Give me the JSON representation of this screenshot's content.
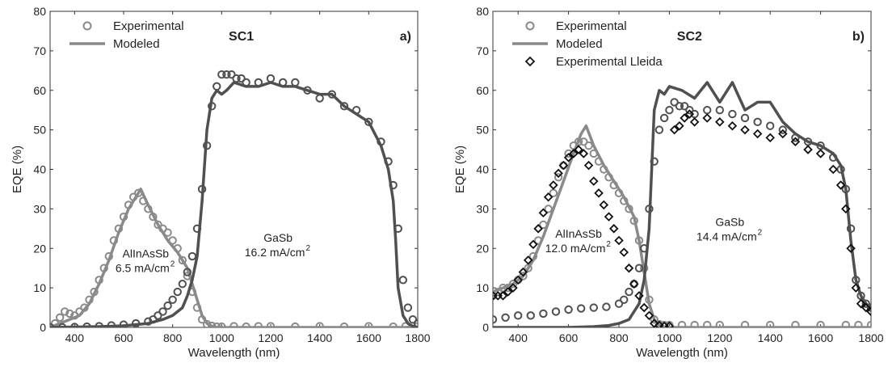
{
  "chart_data": [
    {
      "type": "line",
      "panel_label": "a)",
      "title": "SC1",
      "xlabel": "Wavelength (nm)",
      "ylabel": "EQE (%)",
      "xlim": [
        300,
        1800
      ],
      "ylim": [
        0,
        80
      ],
      "xticks": [
        400,
        600,
        800,
        1000,
        1200,
        1400,
        1600,
        1800
      ],
      "yticks": [
        0,
        10,
        20,
        30,
        40,
        50,
        60,
        70,
        80
      ],
      "legend": [
        "Experimental",
        "Modeled"
      ],
      "legend_position": "top-left",
      "annotations": [
        {
          "lines": [
            "AlInAsSb",
            "6.5 mA/cm",
            "2"
          ],
          "x": 690,
          "y": 14
        },
        {
          "lines": [
            "GaSb",
            "16.2 mA/cm",
            "2"
          ],
          "x": 1230,
          "y": 18
        }
      ],
      "series": [
        {
          "name": "Experimental",
          "group": "AlInAsSb",
          "style": "circle",
          "color": "#8a8a8a",
          "x": [
            300,
            320,
            340,
            360,
            380,
            400,
            420,
            440,
            460,
            480,
            500,
            520,
            540,
            560,
            580,
            600,
            620,
            640,
            660,
            680,
            700,
            720,
            740,
            760,
            780,
            800,
            820,
            840,
            860,
            880,
            900,
            920,
            940,
            960,
            980,
            1000,
            1050,
            1100,
            1150,
            1200,
            1300,
            1400,
            1500,
            1600,
            1700,
            1750,
            1800
          ],
          "y": [
            0,
            1,
            2.5,
            4,
            3.5,
            3,
            4,
            5,
            7,
            9,
            12,
            15,
            18,
            22,
            25,
            28,
            31,
            33,
            34,
            32,
            30,
            28,
            26,
            25,
            24,
            22,
            20,
            17,
            13,
            9,
            5,
            2,
            0.8,
            0.4,
            0.2,
            0.2,
            0.3,
            0.2,
            0.3,
            0.3,
            0.2,
            0.3,
            0.2,
            0.3,
            0.2,
            0.3,
            0.3
          ]
        },
        {
          "name": "Modeled",
          "group": "AlInAsSb",
          "style": "line",
          "color": "#8a8a8a",
          "x": [
            300,
            340,
            380,
            420,
            460,
            500,
            540,
            580,
            620,
            650,
            670,
            700,
            740,
            780,
            820,
            860,
            880,
            900,
            920,
            940,
            960,
            980,
            1000,
            1100,
            1200,
            1400,
            1600,
            1800
          ],
          "y": [
            0,
            1,
            2,
            3,
            6,
            11,
            17,
            24,
            30,
            33,
            35,
            31,
            26,
            22,
            19,
            15,
            11,
            7,
            3,
            1,
            0.3,
            0,
            0,
            0,
            0,
            0,
            0,
            0
          ]
        },
        {
          "name": "Experimental",
          "group": "GaSb",
          "style": "circle",
          "color": "#505050",
          "x": [
            300,
            350,
            400,
            450,
            500,
            550,
            600,
            650,
            700,
            720,
            740,
            760,
            780,
            800,
            820,
            840,
            860,
            880,
            900,
            920,
            940,
            960,
            980,
            1000,
            1020,
            1040,
            1060,
            1080,
            1100,
            1150,
            1200,
            1250,
            1300,
            1350,
            1400,
            1450,
            1500,
            1550,
            1600,
            1650,
            1680,
            1700,
            1720,
            1740,
            1760,
            1780,
            1800
          ],
          "y": [
            0,
            0,
            0.1,
            0.2,
            0.3,
            0.5,
            0.7,
            1,
            1.5,
            2,
            3,
            4,
            5.5,
            7,
            9,
            11,
            14,
            18,
            25,
            35,
            46,
            56,
            61,
            64,
            64,
            64,
            63,
            63,
            62,
            62,
            63,
            62,
            62,
            60,
            58,
            59,
            56,
            55,
            52,
            47,
            42,
            36,
            25,
            12,
            5,
            2,
            1
          ]
        },
        {
          "name": "Modeled",
          "group": "GaSb",
          "style": "line",
          "color": "#505050",
          "x": [
            300,
            500,
            600,
            700,
            760,
            800,
            840,
            860,
            880,
            900,
            920,
            940,
            960,
            980,
            1000,
            1020,
            1050,
            1100,
            1150,
            1200,
            1250,
            1300,
            1350,
            1400,
            1450,
            1500,
            1550,
            1600,
            1650,
            1680,
            1700,
            1710,
            1720,
            1740,
            1760,
            1780,
            1800
          ],
          "y": [
            0,
            0.2,
            0.4,
            1,
            2,
            3,
            5,
            8,
            12,
            18,
            32,
            50,
            58,
            60,
            59,
            60,
            62,
            61,
            61,
            62,
            61,
            61,
            60,
            59,
            59,
            56,
            54,
            52,
            46,
            40,
            32,
            22,
            10,
            3,
            1,
            0.3,
            0
          ]
        }
      ]
    },
    {
      "type": "line",
      "panel_label": "b)",
      "title": "SC2",
      "xlabel": "Wavelength (nm)",
      "ylabel": "EQE (%)",
      "xlim": [
        300,
        1800
      ],
      "ylim": [
        0,
        80
      ],
      "xticks": [
        400,
        600,
        800,
        1000,
        1200,
        1400,
        1600,
        1800
      ],
      "yticks": [
        0,
        10,
        20,
        30,
        40,
        50,
        60,
        70,
        80
      ],
      "legend": [
        "Experimental",
        "Modeled",
        "Experimental Lleida"
      ],
      "legend_position": "top-left",
      "annotations": [
        {
          "lines": [
            "AlInAsSb",
            "12.0 mA/cm",
            "2"
          ],
          "x": 640,
          "y": 19
        },
        {
          "lines": [
            "GaSb",
            "14.4 mA/cm",
            "2"
          ],
          "x": 1240,
          "y": 22
        }
      ],
      "series": [
        {
          "name": "Experimental",
          "group": "AlInAsSb",
          "style": "circle",
          "color": "#8a8a8a",
          "x": [
            300,
            320,
            340,
            360,
            380,
            400,
            420,
            440,
            460,
            480,
            500,
            520,
            540,
            560,
            580,
            600,
            620,
            640,
            660,
            680,
            700,
            720,
            740,
            760,
            780,
            800,
            820,
            840,
            860,
            880,
            900,
            920,
            940,
            960,
            980,
            1000,
            1050,
            1100,
            1150,
            1200,
            1300,
            1400,
            1500,
            1600,
            1700,
            1750,
            1800
          ],
          "y": [
            8,
            9,
            10,
            10,
            11,
            12,
            13,
            15,
            18,
            22,
            26,
            30,
            34,
            38,
            41,
            44,
            46,
            47,
            47,
            46,
            44,
            42,
            40,
            38,
            36,
            34,
            32,
            30,
            27,
            22,
            15,
            7,
            2,
            0.8,
            0.6,
            0.6,
            0.6,
            0.6,
            0.6,
            0.6,
            0.6,
            0.6,
            0.6,
            0.6,
            0.6,
            0.6,
            0.6
          ]
        },
        {
          "name": "Modeled",
          "group": "AlInAsSb",
          "style": "line",
          "color": "#8a8a8a",
          "x": [
            300,
            340,
            380,
            420,
            460,
            500,
            540,
            580,
            620,
            650,
            670,
            700,
            740,
            780,
            820,
            860,
            880,
            900,
            920,
            940,
            960,
            980,
            1000,
            1100,
            1200,
            1400,
            1600,
            1800
          ],
          "y": [
            9,
            10,
            11,
            13,
            17,
            23,
            30,
            37,
            44,
            49,
            51,
            46,
            41,
            37,
            33,
            28,
            22,
            14,
            6,
            2,
            0.5,
            0,
            0,
            0,
            0,
            0,
            0,
            0
          ]
        },
        {
          "name": "Experimental",
          "group": "GaSb",
          "style": "circle",
          "color": "#505050",
          "x": [
            300,
            350,
            400,
            450,
            500,
            550,
            600,
            650,
            700,
            750,
            800,
            820,
            840,
            860,
            880,
            900,
            920,
            940,
            960,
            980,
            1000,
            1020,
            1040,
            1060,
            1080,
            1100,
            1150,
            1200,
            1250,
            1300,
            1350,
            1400,
            1450,
            1500,
            1550,
            1600,
            1650,
            1680,
            1700,
            1720,
            1740,
            1760,
            1780,
            1800
          ],
          "y": [
            2,
            2.5,
            3,
            3,
            3.5,
            4,
            4.5,
            4.8,
            5,
            5.2,
            6,
            7,
            9,
            11,
            15,
            20,
            30,
            42,
            50,
            53,
            55,
            57,
            56,
            56,
            55,
            54,
            55,
            55,
            54,
            53,
            52,
            51,
            50,
            48,
            47,
            46,
            43,
            40,
            35,
            25,
            12,
            8,
            6,
            5
          ]
        },
        {
          "name": "Modeled",
          "group": "GaSb",
          "style": "line",
          "color": "#505050",
          "x": [
            300,
            400,
            500,
            600,
            700,
            760,
            800,
            840,
            860,
            880,
            900,
            920,
            940,
            960,
            980,
            1000,
            1050,
            1100,
            1150,
            1200,
            1250,
            1300,
            1350,
            1400,
            1450,
            1500,
            1550,
            1600,
            1650,
            1680,
            1700,
            1720,
            1740,
            1760,
            1780,
            1800
          ],
          "y": [
            0,
            0,
            0,
            0,
            0.2,
            0.5,
            1,
            2,
            4,
            6,
            12,
            25,
            55,
            60,
            59,
            61,
            60,
            58,
            62,
            57,
            62,
            55,
            57,
            57,
            52,
            49,
            47,
            46,
            44,
            41,
            35,
            22,
            12,
            8,
            6,
            5
          ]
        },
        {
          "name": "Experimental Lleida",
          "group": "Lleida",
          "style": "diamond",
          "color": "#111111",
          "x": [
            300,
            320,
            340,
            360,
            380,
            400,
            420,
            440,
            460,
            480,
            500,
            520,
            540,
            560,
            580,
            600,
            620,
            640,
            660,
            680,
            700,
            720,
            740,
            760,
            780,
            800,
            820,
            840,
            860,
            880,
            900,
            920,
            940,
            960,
            980,
            1000,
            1020,
            1040,
            1060,
            1080,
            1100,
            1150,
            1200,
            1250,
            1300,
            1350,
            1400,
            1450,
            1500,
            1550,
            1600,
            1650,
            1680,
            1700,
            1720,
            1740,
            1760,
            1780,
            1800
          ],
          "y": [
            8,
            8,
            8,
            9,
            10,
            12,
            14,
            17,
            21,
            25,
            29,
            33,
            36,
            39,
            41,
            43,
            44,
            45,
            44,
            41,
            37,
            34,
            31,
            28,
            25,
            22,
            19,
            15,
            11,
            8,
            5,
            3,
            1,
            0.5,
            0.3,
            0.3,
            50,
            51,
            53,
            54,
            52,
            53,
            52,
            51,
            50,
            49,
            48,
            49,
            47,
            45,
            44,
            40,
            36,
            30,
            20,
            10,
            6,
            5,
            4
          ]
        }
      ]
    }
  ]
}
